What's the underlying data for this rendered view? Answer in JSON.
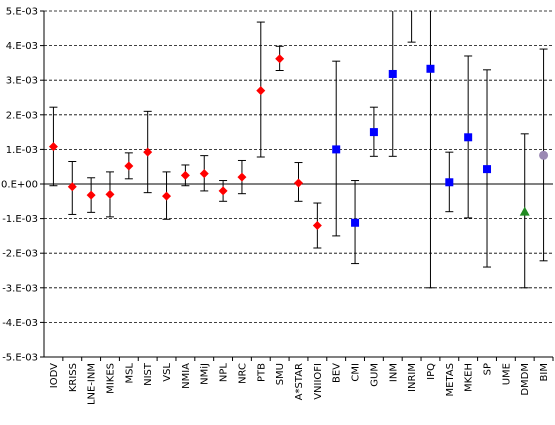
{
  "chart_data": {
    "type": "scatter",
    "title": "",
    "xlabel": "",
    "ylabel": "",
    "ylim": [
      -0.005,
      0.005
    ],
    "y_ticks": [
      {
        "value": 0.005,
        "label": "5.E-03"
      },
      {
        "value": 0.004,
        "label": "4.E-03"
      },
      {
        "value": 0.003,
        "label": "3.E-03"
      },
      {
        "value": 0.002,
        "label": "2.E-03"
      },
      {
        "value": 0.001,
        "label": "1.E-03"
      },
      {
        "value": 0.0,
        "label": "0.E+00"
      },
      {
        "value": -0.001,
        "label": "-1.E-03"
      },
      {
        "value": -0.002,
        "label": "-2.E-03"
      },
      {
        "value": -0.003,
        "label": "-3.E-03"
      },
      {
        "value": -0.004,
        "label": "-4.E-03"
      },
      {
        "value": -0.005,
        "label": "-5.E-03"
      }
    ],
    "gridlines": "horizontal-dashed",
    "colors": {
      "diamond": "#ff0000",
      "square": "#0000ff",
      "triangle": "#228b22",
      "circle": "#9b89b3",
      "error_bar": "#000000",
      "grid": "#000000"
    },
    "categories": [
      "IODV",
      "KRISS",
      "LNE-INM",
      "MIKES",
      "MSL",
      "NIST",
      "VSL",
      "NMIA",
      "NMiJ",
      "NPL",
      "NRC",
      "PTB",
      "SMU",
      "A*STAR",
      "VNIIOFI",
      "BEV",
      "CMI",
      "GUM",
      "INM",
      "INRIM",
      "IPQ",
      "METAS",
      "MKEH",
      "SP",
      "UME",
      "DMDM",
      "BIM"
    ],
    "points": [
      {
        "category": "IODV",
        "y": 0.00108,
        "y_low": -5e-05,
        "y_high": 0.00222,
        "marker": "diamond"
      },
      {
        "category": "KRISS",
        "y": -8e-05,
        "y_low": -0.00088,
        "y_high": 0.00065,
        "marker": "diamond"
      },
      {
        "category": "LNE-INM",
        "y": -0.00032,
        "y_low": -0.00082,
        "y_high": 0.00018,
        "marker": "diamond"
      },
      {
        "category": "MIKES",
        "y": -0.0003,
        "y_low": -0.00095,
        "y_high": 0.00035,
        "marker": "diamond"
      },
      {
        "category": "MSL",
        "y": 0.00052,
        "y_low": 0.00015,
        "y_high": 0.0009,
        "marker": "diamond"
      },
      {
        "category": "NIST",
        "y": 0.00092,
        "y_low": -0.00025,
        "y_high": 0.0021,
        "marker": "diamond"
      },
      {
        "category": "VSL",
        "y": -0.00035,
        "y_low": -0.00102,
        "y_high": 0.00035,
        "marker": "diamond"
      },
      {
        "category": "NMIA",
        "y": 0.00025,
        "y_low": -5e-05,
        "y_high": 0.00055,
        "marker": "diamond"
      },
      {
        "category": "NMiJ",
        "y": 0.0003,
        "y_low": -0.0002,
        "y_high": 0.00082,
        "marker": "diamond"
      },
      {
        "category": "NPL",
        "y": -0.0002,
        "y_low": -0.0005,
        "y_high": 0.0001,
        "marker": "diamond"
      },
      {
        "category": "NRC",
        "y": 0.0002,
        "y_low": -0.00028,
        "y_high": 0.00068,
        "marker": "diamond"
      },
      {
        "category": "PTB",
        "y": 0.0027,
        "y_low": 0.00078,
        "y_high": 0.00468,
        "marker": "diamond"
      },
      {
        "category": "SMU",
        "y": 0.00362,
        "y_low": 0.00328,
        "y_high": 0.00398,
        "marker": "diamond"
      },
      {
        "category": "A*STAR",
        "y": 3e-05,
        "y_low": -0.0005,
        "y_high": 0.00062,
        "marker": "diamond"
      },
      {
        "category": "VNIIOFI",
        "y": -0.0012,
        "y_low": -0.00185,
        "y_high": -0.00055,
        "marker": "diamond"
      },
      {
        "category": "BEV",
        "y": 0.001,
        "y_low": -0.0015,
        "y_high": 0.00355,
        "marker": "square"
      },
      {
        "category": "CMI",
        "y": -0.00112,
        "y_low": -0.0023,
        "y_high": 0.0001,
        "marker": "square"
      },
      {
        "category": "GUM",
        "y": 0.0015,
        "y_low": 0.0008,
        "y_high": 0.00222,
        "marker": "square"
      },
      {
        "category": "INM",
        "y": 0.00318,
        "y_low": 0.0008,
        "y_high": 0.005,
        "marker": "square"
      },
      {
        "category": "INRIM",
        "y": null,
        "y_low": 0.0041,
        "y_high": 0.005,
        "marker": "square"
      },
      {
        "category": "IPQ",
        "y": 0.00333,
        "y_low": -0.003,
        "y_high": 0.005,
        "marker": "square"
      },
      {
        "category": "METAS",
        "y": 5e-05,
        "y_low": -0.0008,
        "y_high": 0.00092,
        "marker": "square"
      },
      {
        "category": "MKEH",
        "y": 0.00135,
        "y_low": -0.00098,
        "y_high": 0.0037,
        "marker": "square"
      },
      {
        "category": "SP",
        "y": 0.00043,
        "y_low": -0.0024,
        "y_high": 0.0033,
        "marker": "square"
      },
      {
        "category": "UME",
        "y": null,
        "y_low": null,
        "y_high": null,
        "marker": "square"
      },
      {
        "category": "DMDM",
        "y": -0.0008,
        "y_low": -0.003,
        "y_high": 0.00145,
        "marker": "triangle"
      },
      {
        "category": "BIM",
        "y": 0.00083,
        "y_low": -0.00222,
        "y_high": 0.0039,
        "marker": "circle"
      }
    ]
  }
}
